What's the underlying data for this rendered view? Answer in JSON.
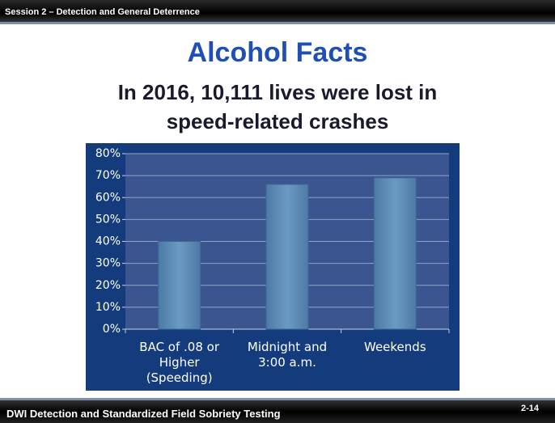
{
  "header": {
    "session": "Session 2 – Detection and General Deterrence"
  },
  "footer": {
    "course": "DWI Detection and Standardized Field Sobriety Testing",
    "page": "2-14"
  },
  "chart_data": {
    "type": "bar",
    "title": "Alcohol Facts",
    "subtitle": "In 2016, 10,111 lives were lost in\nspeed-related crashes",
    "categories": [
      "BAC of .08 or\nHigher\n(Speeding)",
      "Midnight and\n3:00 a.m.",
      "Weekends"
    ],
    "values": [
      40,
      66,
      69
    ],
    "color": "#5a8cb4",
    "ylim": [
      0,
      80
    ],
    "yticks": [
      {
        "value": 0,
        "label": "0%"
      },
      {
        "value": 10,
        "label": "10%"
      },
      {
        "value": 20,
        "label": "20%"
      },
      {
        "value": 30,
        "label": "30%"
      },
      {
        "value": 40,
        "label": "40%"
      },
      {
        "value": 50,
        "label": "50%"
      },
      {
        "value": 60,
        "label": "60%"
      },
      {
        "value": 70,
        "label": "70%"
      },
      {
        "value": 80,
        "label": "80%"
      }
    ],
    "grid": true
  }
}
